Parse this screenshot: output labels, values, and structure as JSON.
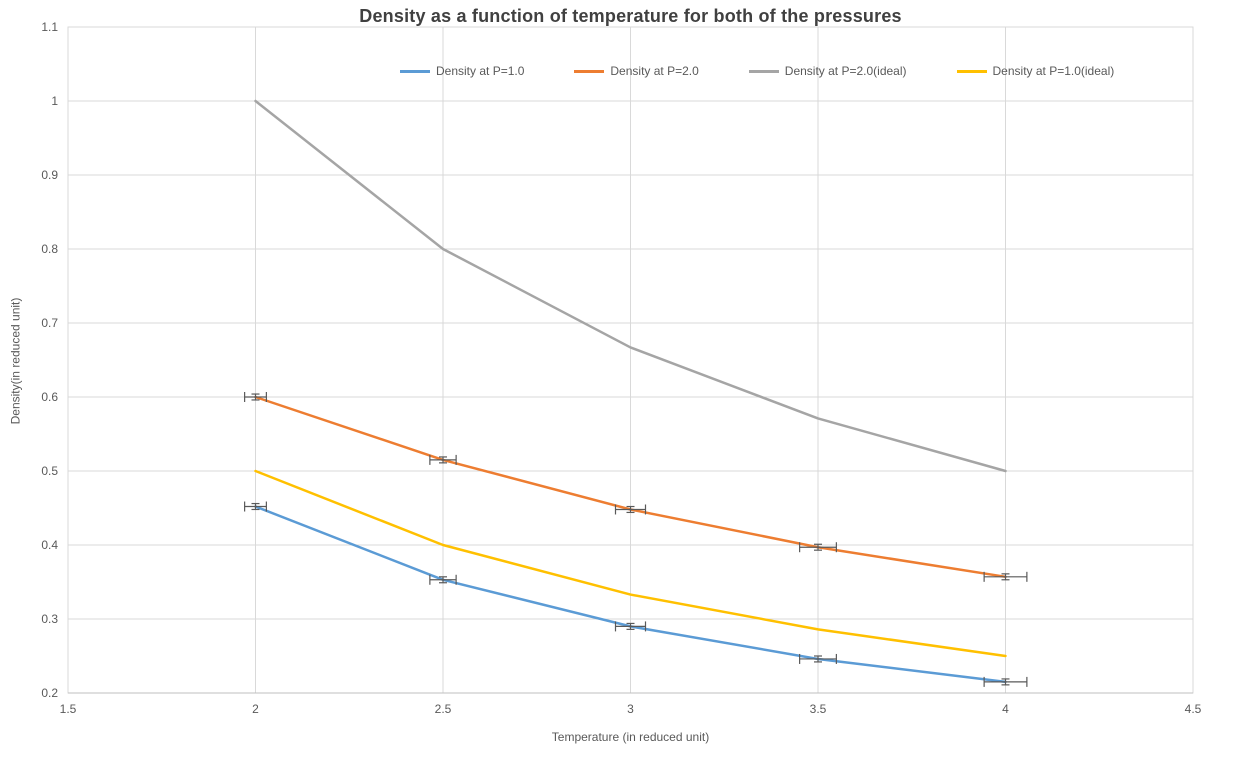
{
  "chart_data": {
    "type": "line",
    "title": "Density as a function of temperature for both of the pressures",
    "xlabel": "Temperature (in reduced unit)",
    "ylabel": "Density(in reduced unit)",
    "xlim": [
      1.5,
      4.5
    ],
    "ylim": [
      0.2,
      1.1
    ],
    "grid": true,
    "legend_position": "top",
    "x_tick_values": [
      1.5,
      2,
      2.5,
      3,
      3.5,
      4,
      4.5
    ],
    "x_tick_labels": [
      "1.5",
      "2",
      "2.5",
      "3",
      "3.5",
      "4",
      "4.5"
    ],
    "y_tick_values": [
      0.2,
      0.3,
      0.4,
      0.5,
      0.6,
      0.7,
      0.8,
      0.9,
      1.0,
      1.1
    ],
    "y_tick_labels": [
      "0.2",
      "0.3",
      "0.4",
      "0.5",
      "0.6",
      "0.7",
      "0.8",
      "0.9",
      "1",
      "1.1"
    ],
    "x": [
      2,
      2.5,
      3,
      3.5,
      4
    ],
    "series": [
      {
        "name": "Density at P=1.0",
        "color": "#5B9BD5",
        "values": [
          0.452,
          0.353,
          0.29,
          0.246,
          0.215
        ],
        "x_err": [
          0.029,
          0.035,
          0.04,
          0.049,
          0.057
        ],
        "y_err": [
          0.004,
          0.004,
          0.004,
          0.004,
          0.004
        ]
      },
      {
        "name": "Density at P=2.0",
        "color": "#ED7D31",
        "values": [
          0.6,
          0.515,
          0.448,
          0.397,
          0.357
        ],
        "x_err": [
          0.029,
          0.035,
          0.04,
          0.049,
          0.057
        ],
        "y_err": [
          0.004,
          0.004,
          0.004,
          0.004,
          0.004
        ]
      },
      {
        "name": "Density at P=2.0(ideal)",
        "color": "#A5A5A5",
        "values": [
          1.0,
          0.8,
          0.667,
          0.571,
          0.5
        ]
      },
      {
        "name": "Density at P=1.0(ideal)",
        "color": "#FFC000",
        "values": [
          0.5,
          0.4,
          0.333,
          0.286,
          0.25
        ]
      }
    ],
    "styles": {
      "grid_color": "#D9D9D9",
      "axis_line_color": "#BFBFBF",
      "tick_label_color": "#595959",
      "title_color": "#404040",
      "error_bar_color": "#595959",
      "background": "#FFFFFF"
    }
  }
}
